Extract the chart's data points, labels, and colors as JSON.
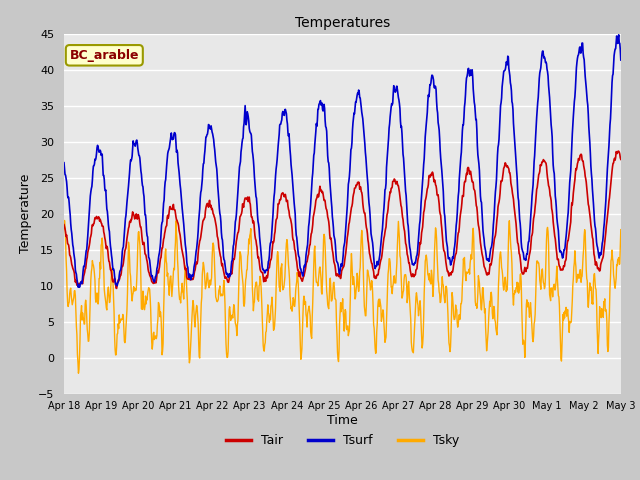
{
  "title": "Temperatures",
  "xlabel": "Time",
  "ylabel": "Temperature",
  "ylim": [
    -5,
    45
  ],
  "annotation": "BC_arable",
  "legend": [
    "Tair",
    "Tsurf",
    "Tsky"
  ],
  "line_colors": [
    "#cc0000",
    "#0000cc",
    "#ffaa00"
  ],
  "fig_bg_color": "#c8c8c8",
  "plot_bg_color": "#e8e8e8",
  "grid_color": "#ffffff",
  "n_points": 1080,
  "n_days": 15
}
